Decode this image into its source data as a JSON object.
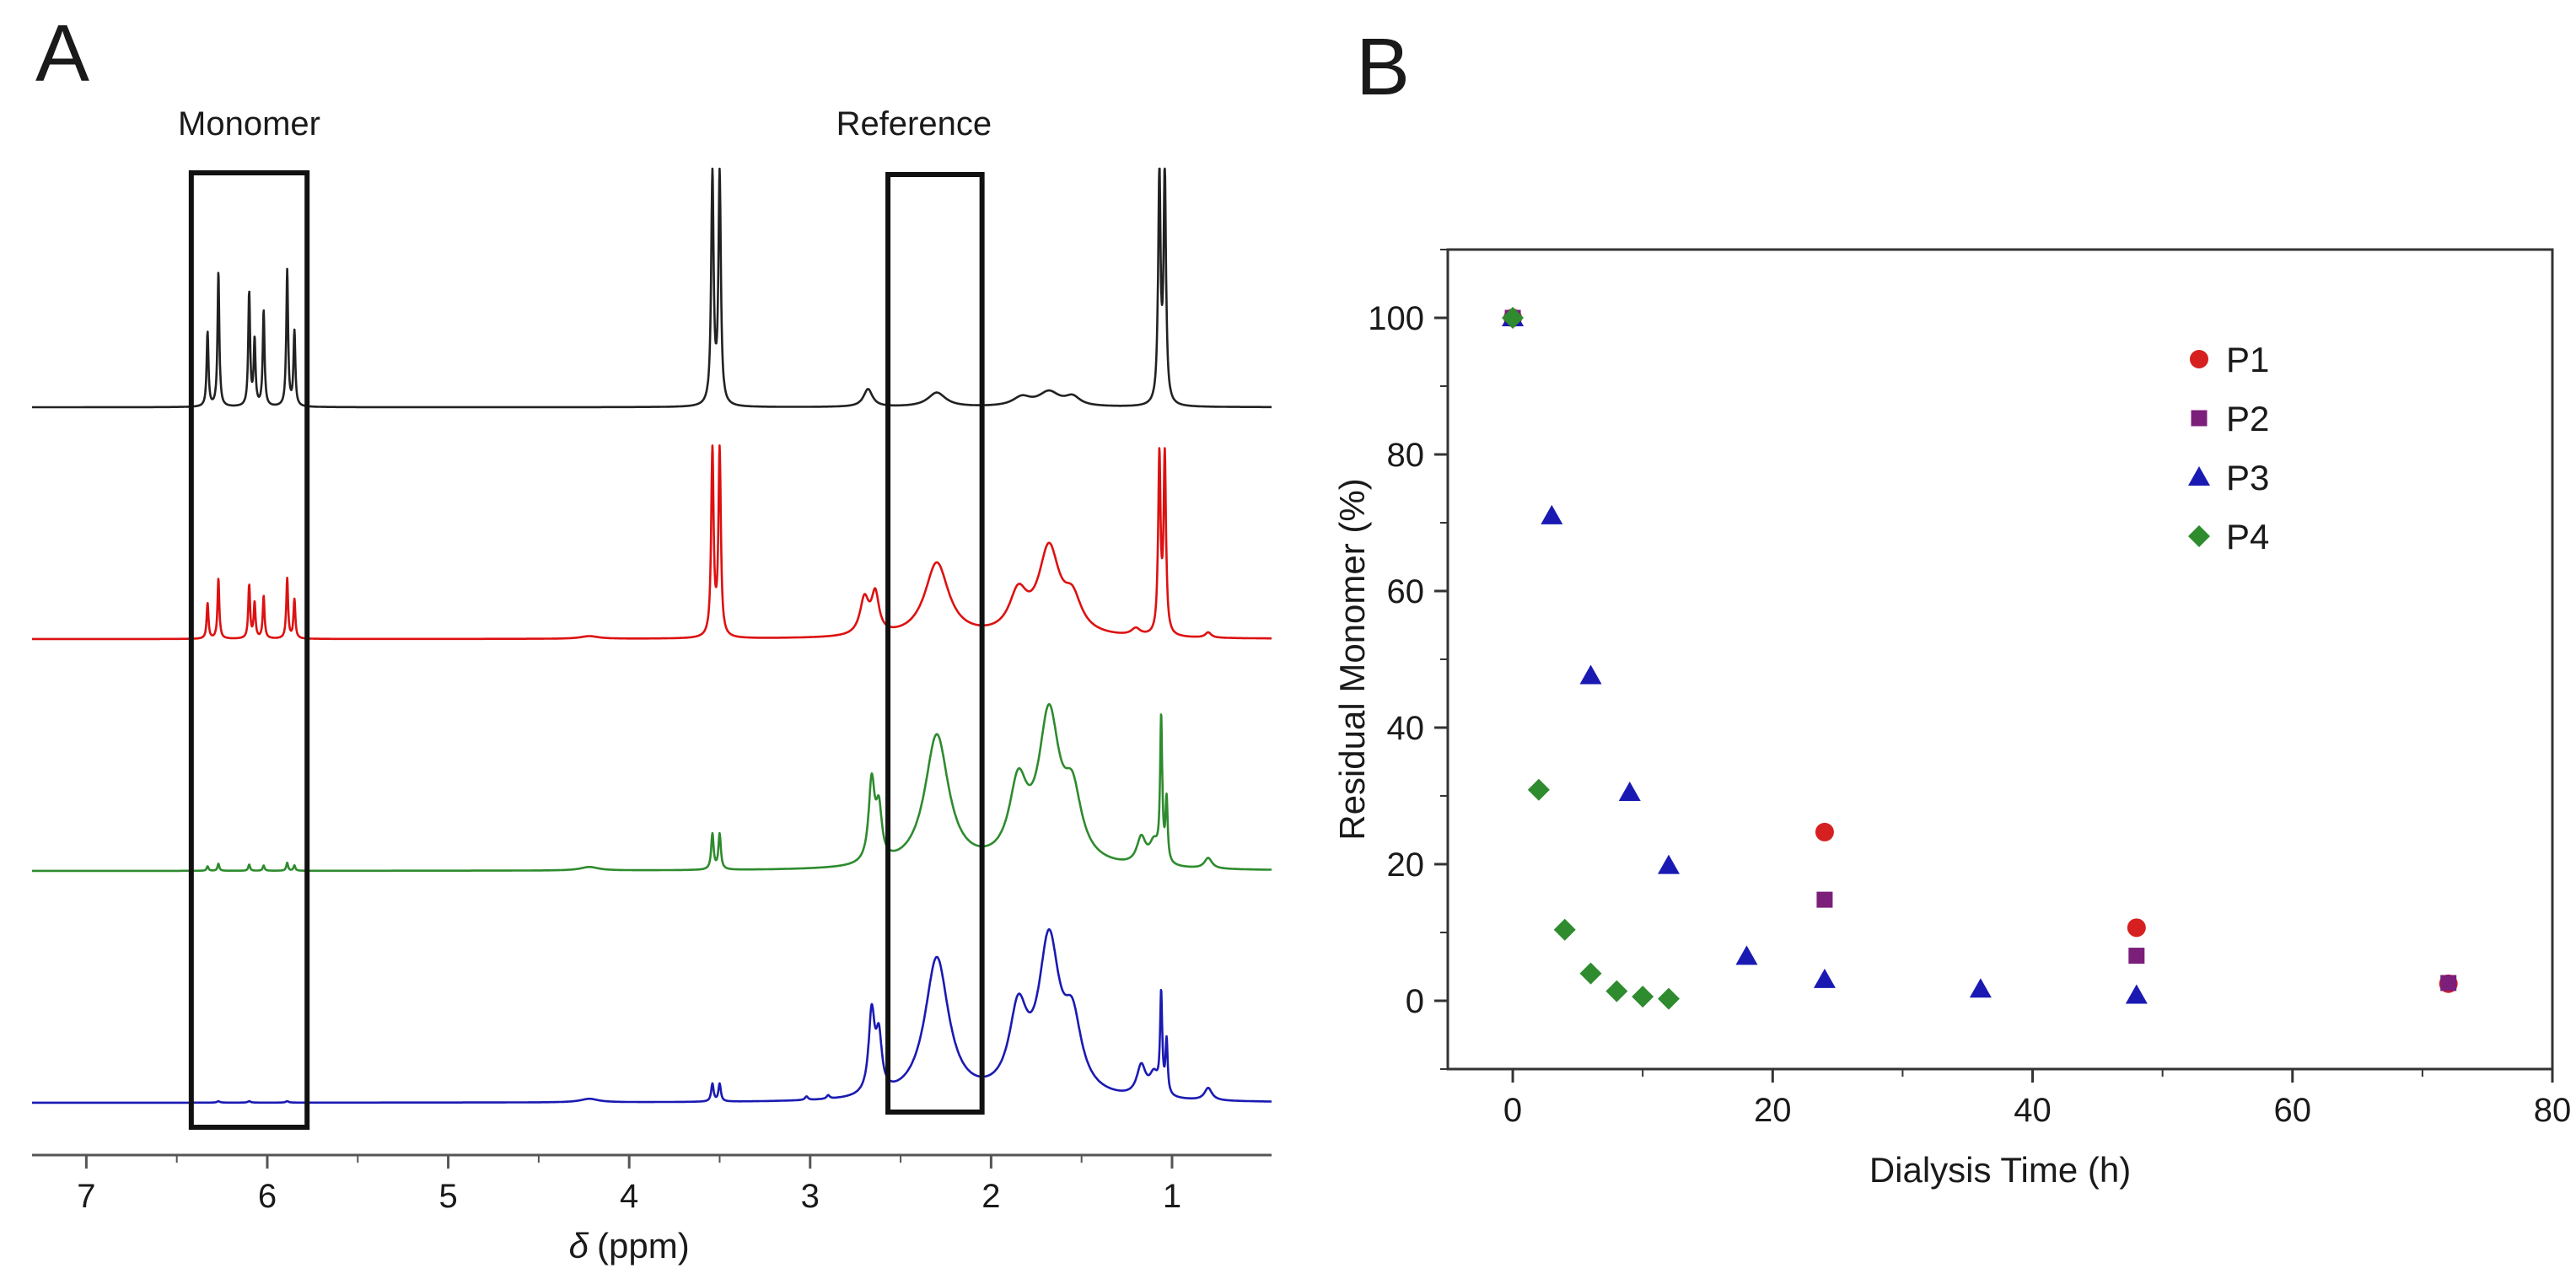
{
  "figure": {
    "panel_a_letter": "A",
    "panel_b_letter": "B"
  },
  "chart_data": [
    {
      "type": "line",
      "panel": "A",
      "title": "",
      "xlabel_symbol": "δ",
      "xlabel_unit": "(ppm)",
      "xlim": [
        7.3,
        0.45
      ],
      "xticks": [
        7,
        6,
        5,
        4,
        3,
        2,
        1
      ],
      "axis_color": "#555555",
      "box_labels": [
        {
          "label": "Monomer",
          "range_ppm": [
            6.42,
            5.78
          ]
        },
        {
          "label": "Reference",
          "range_ppm": [
            2.57,
            2.05
          ]
        }
      ],
      "series": [
        {
          "name": "spectrum-black",
          "color": "#222222",
          "baseline_intensity": 0.93,
          "peaks": [
            [
              6.33,
              0.42,
              0.006
            ],
            [
              6.27,
              0.76,
              0.006
            ],
            [
              6.1,
              0.64,
              0.006
            ],
            [
              6.07,
              0.37,
              0.006
            ],
            [
              6.02,
              0.54,
              0.006
            ],
            [
              5.89,
              0.77,
              0.006
            ],
            [
              5.85,
              0.42,
              0.006
            ],
            [
              3.54,
              1.3,
              0.008
            ],
            [
              3.5,
              1.3,
              0.008
            ],
            [
              2.68,
              0.1,
              0.03
            ],
            [
              2.3,
              0.08,
              0.06
            ],
            [
              1.83,
              0.05,
              0.06
            ],
            [
              1.68,
              0.08,
              0.07
            ],
            [
              1.55,
              0.05,
              0.05
            ],
            [
              1.07,
              1.3,
              0.008
            ],
            [
              1.04,
              1.3,
              0.008
            ]
          ]
        },
        {
          "name": "spectrum-red",
          "color": "#dd1111",
          "baseline_intensity": 0.6,
          "peaks": [
            [
              6.33,
              0.2,
              0.006
            ],
            [
              6.27,
              0.34,
              0.006
            ],
            [
              6.1,
              0.3,
              0.006
            ],
            [
              6.07,
              0.2,
              0.006
            ],
            [
              6.02,
              0.24,
              0.006
            ],
            [
              5.89,
              0.34,
              0.006
            ],
            [
              5.85,
              0.22,
              0.006
            ],
            [
              4.22,
              0.015,
              0.06
            ],
            [
              3.54,
              1.05,
              0.008
            ],
            [
              3.5,
              1.05,
              0.008
            ],
            [
              2.7,
              0.2,
              0.03
            ],
            [
              2.64,
              0.22,
              0.025
            ],
            [
              2.3,
              0.42,
              0.08
            ],
            [
              1.85,
              0.22,
              0.06
            ],
            [
              1.68,
              0.48,
              0.07
            ],
            [
              1.55,
              0.18,
              0.06
            ],
            [
              1.2,
              0.04,
              0.03
            ],
            [
              1.07,
              1.0,
              0.008
            ],
            [
              1.04,
              1.0,
              0.008
            ],
            [
              0.8,
              0.03,
              0.02
            ]
          ]
        },
        {
          "name": "spectrum-green",
          "color": "#2e8b2e",
          "baseline_intensity": 0.3,
          "peaks": [
            [
              6.33,
              0.025,
              0.006
            ],
            [
              6.27,
              0.04,
              0.006
            ],
            [
              6.1,
              0.035,
              0.006
            ],
            [
              6.02,
              0.03,
              0.006
            ],
            [
              5.89,
              0.045,
              0.006
            ],
            [
              5.85,
              0.03,
              0.006
            ],
            [
              4.22,
              0.02,
              0.06
            ],
            [
              3.54,
              0.2,
              0.008
            ],
            [
              3.5,
              0.2,
              0.008
            ],
            [
              2.66,
              0.45,
              0.02
            ],
            [
              2.62,
              0.28,
              0.02
            ],
            [
              2.3,
              0.75,
              0.08
            ],
            [
              1.85,
              0.42,
              0.06
            ],
            [
              1.68,
              0.82,
              0.07
            ],
            [
              1.55,
              0.35,
              0.06
            ],
            [
              1.17,
              0.15,
              0.03
            ],
            [
              1.1,
              0.12,
              0.03
            ],
            [
              1.06,
              0.8,
              0.007
            ],
            [
              1.03,
              0.35,
              0.007
            ],
            [
              0.8,
              0.06,
              0.025
            ]
          ]
        },
        {
          "name": "spectrum-blue",
          "color": "#1a1ab3",
          "baseline_intensity": 0.0,
          "peaks": [
            [
              6.27,
              0.008,
              0.01
            ],
            [
              6.1,
              0.008,
              0.01
            ],
            [
              5.89,
              0.008,
              0.01
            ],
            [
              4.22,
              0.02,
              0.06
            ],
            [
              3.54,
              0.1,
              0.008
            ],
            [
              3.5,
              0.1,
              0.008
            ],
            [
              3.02,
              0.02,
              0.01
            ],
            [
              2.9,
              0.02,
              0.01
            ],
            [
              2.66,
              0.45,
              0.02
            ],
            [
              2.62,
              0.3,
              0.02
            ],
            [
              2.3,
              0.8,
              0.08
            ],
            [
              1.85,
              0.45,
              0.06
            ],
            [
              1.68,
              0.85,
              0.07
            ],
            [
              1.55,
              0.37,
              0.06
            ],
            [
              1.17,
              0.17,
              0.03
            ],
            [
              1.1,
              0.12,
              0.03
            ],
            [
              1.06,
              0.55,
              0.007
            ],
            [
              1.03,
              0.3,
              0.007
            ],
            [
              0.8,
              0.07,
              0.025
            ]
          ]
        }
      ]
    },
    {
      "type": "scatter",
      "panel": "B",
      "title": "",
      "xlabel": "Dialysis Time (h)",
      "ylabel": "Residual Monomer (%)",
      "xlim": [
        -5,
        80
      ],
      "ylim": [
        -10,
        110
      ],
      "xticks": [
        0,
        20,
        40,
        60,
        80
      ],
      "yticks": [
        0,
        20,
        40,
        60,
        80,
        100
      ],
      "legend_position": "top-right",
      "series": [
        {
          "name": "P1",
          "marker": "circle",
          "color": "#d62020",
          "points": [
            [
              0,
              100
            ],
            [
              24,
              24.7
            ],
            [
              48,
              10.7
            ],
            [
              72,
              2.5
            ]
          ]
        },
        {
          "name": "P2",
          "marker": "square",
          "color": "#7b1f7b",
          "points": [
            [
              0,
              100
            ],
            [
              24,
              14.8
            ],
            [
              48,
              6.6
            ],
            [
              72,
              2.6
            ]
          ]
        },
        {
          "name": "P3",
          "marker": "triangle",
          "color": "#1a1ab3",
          "points": [
            [
              0,
              100
            ],
            [
              3,
              71
            ],
            [
              6,
              47.6
            ],
            [
              9,
              30.5
            ],
            [
              12,
              19.8
            ],
            [
              18,
              6.5
            ],
            [
              24,
              3.1
            ],
            [
              36,
              1.7
            ],
            [
              48,
              0.8
            ]
          ]
        },
        {
          "name": "P4",
          "marker": "diamond",
          "color": "#2e8b2e",
          "points": [
            [
              0,
              100
            ],
            [
              2,
              30.9
            ],
            [
              4,
              10.4
            ],
            [
              6,
              4.0
            ],
            [
              8,
              1.4
            ],
            [
              10,
              0.6
            ],
            [
              12,
              0.3
            ]
          ]
        }
      ]
    }
  ]
}
